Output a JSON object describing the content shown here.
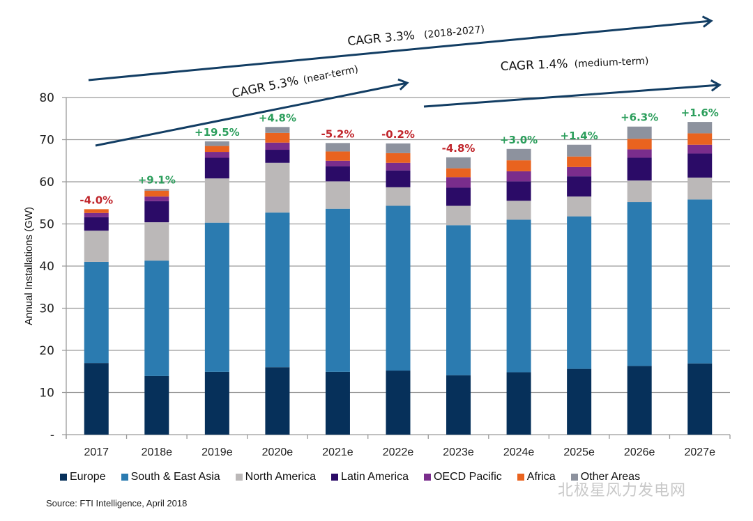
{
  "chart_data": {
    "type": "bar",
    "stacked": true,
    "title": "",
    "xlabel": "",
    "ylabel": "Annual Installations (GW)",
    "ylim": [
      0,
      80
    ],
    "yticks": [
      0,
      10,
      20,
      30,
      40,
      50,
      60,
      70,
      80
    ],
    "ytick_labels": [
      "-",
      "10",
      "20",
      "30",
      "40",
      "50",
      "60",
      "70",
      "80"
    ],
    "grid": true,
    "legend_position": "bottom",
    "categories": [
      "2017",
      "2018e",
      "2019e",
      "2020e",
      "2021e",
      "2022e",
      "2023e",
      "2024e",
      "2025e",
      "2026e",
      "2027e"
    ],
    "series": [
      {
        "name": "Europe",
        "color": "#06305a",
        "values": [
          17.0,
          13.9,
          14.9,
          16.0,
          14.9,
          15.2,
          14.1,
          14.8,
          15.6,
          16.3,
          16.9
        ]
      },
      {
        "name": "South & East Asia",
        "color": "#2b7bb0",
        "values": [
          24.0,
          27.4,
          35.4,
          36.7,
          38.7,
          39.1,
          35.6,
          36.2,
          36.2,
          38.9,
          38.9
        ]
      },
      {
        "name": "North America",
        "color": "#bbb8b8",
        "values": [
          7.4,
          9.1,
          10.5,
          11.8,
          6.5,
          4.4,
          4.6,
          4.5,
          4.7,
          5.1,
          5.2
        ]
      },
      {
        "name": "Latin America",
        "color": "#2b0b67",
        "values": [
          3.2,
          5.0,
          4.9,
          3.1,
          3.6,
          4.0,
          4.3,
          4.6,
          4.8,
          5.4,
          5.7
        ]
      },
      {
        "name": "OECD Pacific",
        "color": "#7a2d8c",
        "values": [
          1.0,
          1.1,
          1.4,
          1.7,
          1.3,
          1.8,
          2.5,
          2.4,
          2.2,
          2.0,
          2.1
        ]
      },
      {
        "name": "Africa",
        "color": "#e9631f",
        "values": [
          0.9,
          1.4,
          1.4,
          2.3,
          2.2,
          2.3,
          2.1,
          2.6,
          2.5,
          2.5,
          2.7
        ]
      },
      {
        "name": "Other Areas",
        "color": "#8d929e",
        "values": [
          0.0,
          0.4,
          1.1,
          1.4,
          2.0,
          2.3,
          2.6,
          2.7,
          2.8,
          2.9,
          2.7
        ]
      }
    ],
    "growth_labels": [
      {
        "text": "-4.0%",
        "color": "#c0252b"
      },
      {
        "text": "+9.1%",
        "color": "#2c9e5c"
      },
      {
        "text": "+19.5%",
        "color": "#2c9e5c"
      },
      {
        "text": "+4.8%",
        "color": "#2c9e5c"
      },
      {
        "text": "-5.2%",
        "color": "#c0252b"
      },
      {
        "text": "-0.2%",
        "color": "#c0252b"
      },
      {
        "text": "-4.8%",
        "color": "#c0252b"
      },
      {
        "text": "+3.0%",
        "color": "#2c9e5c"
      },
      {
        "text": "+1.4%",
        "color": "#2c9e5c"
      },
      {
        "text": "+6.3%",
        "color": "#2c9e5c"
      },
      {
        "text": "+1.6%",
        "color": "#2c9e5c"
      }
    ],
    "annotations": [
      {
        "id": "cagr-overall",
        "label": "CAGR 3.3%",
        "sub": "(2018-2027)"
      },
      {
        "id": "cagr-near",
        "label": "CAGR 5.3%",
        "sub": "(near-term)"
      },
      {
        "id": "cagr-medium",
        "label": "CAGR 1.4%",
        "sub": "(medium-term)"
      }
    ],
    "arrow_color": "#123d63",
    "source": "Source: FTI Intelligence, April 2018"
  },
  "watermark": "北极星风力发电网"
}
